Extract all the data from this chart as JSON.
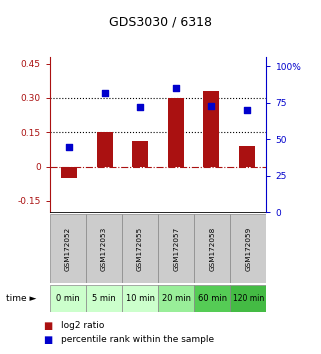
{
  "title": "GDS3030 / 6318",
  "categories": [
    "GSM172052",
    "GSM172053",
    "GSM172055",
    "GSM172057",
    "GSM172058",
    "GSM172059"
  ],
  "time_labels": [
    "0 min",
    "5 min",
    "10 min",
    "20 min",
    "60 min",
    "120 min"
  ],
  "log2_ratio": [
    -0.05,
    0.15,
    0.11,
    0.3,
    0.33,
    0.09
  ],
  "percentile_rank": [
    45,
    82,
    72,
    85,
    73,
    70
  ],
  "bar_color": "#aa1111",
  "dot_color": "#0000cc",
  "ylim_left": [
    -0.2,
    0.48
  ],
  "ylim_right": [
    0,
    106.67
  ],
  "yticks_left": [
    -0.15,
    0.0,
    0.15,
    0.3,
    0.45
  ],
  "ytick_labels_left": [
    "-0.15",
    "0",
    "0.15",
    "0.30",
    "0.45"
  ],
  "yticks_right": [
    0,
    25,
    50,
    75,
    100
  ],
  "ytick_labels_right": [
    "0",
    "25",
    "50",
    "75",
    "100%"
  ],
  "hline_dotted": [
    0.15,
    0.3
  ],
  "hline_dashed": 0.0,
  "time_row_colors": [
    "#ccffcc",
    "#ccffcc",
    "#ccffcc",
    "#99ee99",
    "#55cc55",
    "#44bb44"
  ],
  "gsm_row_color": "#cccccc",
  "legend_log2_color": "#aa1111",
  "legend_pct_color": "#0000cc",
  "bar_width": 0.45
}
